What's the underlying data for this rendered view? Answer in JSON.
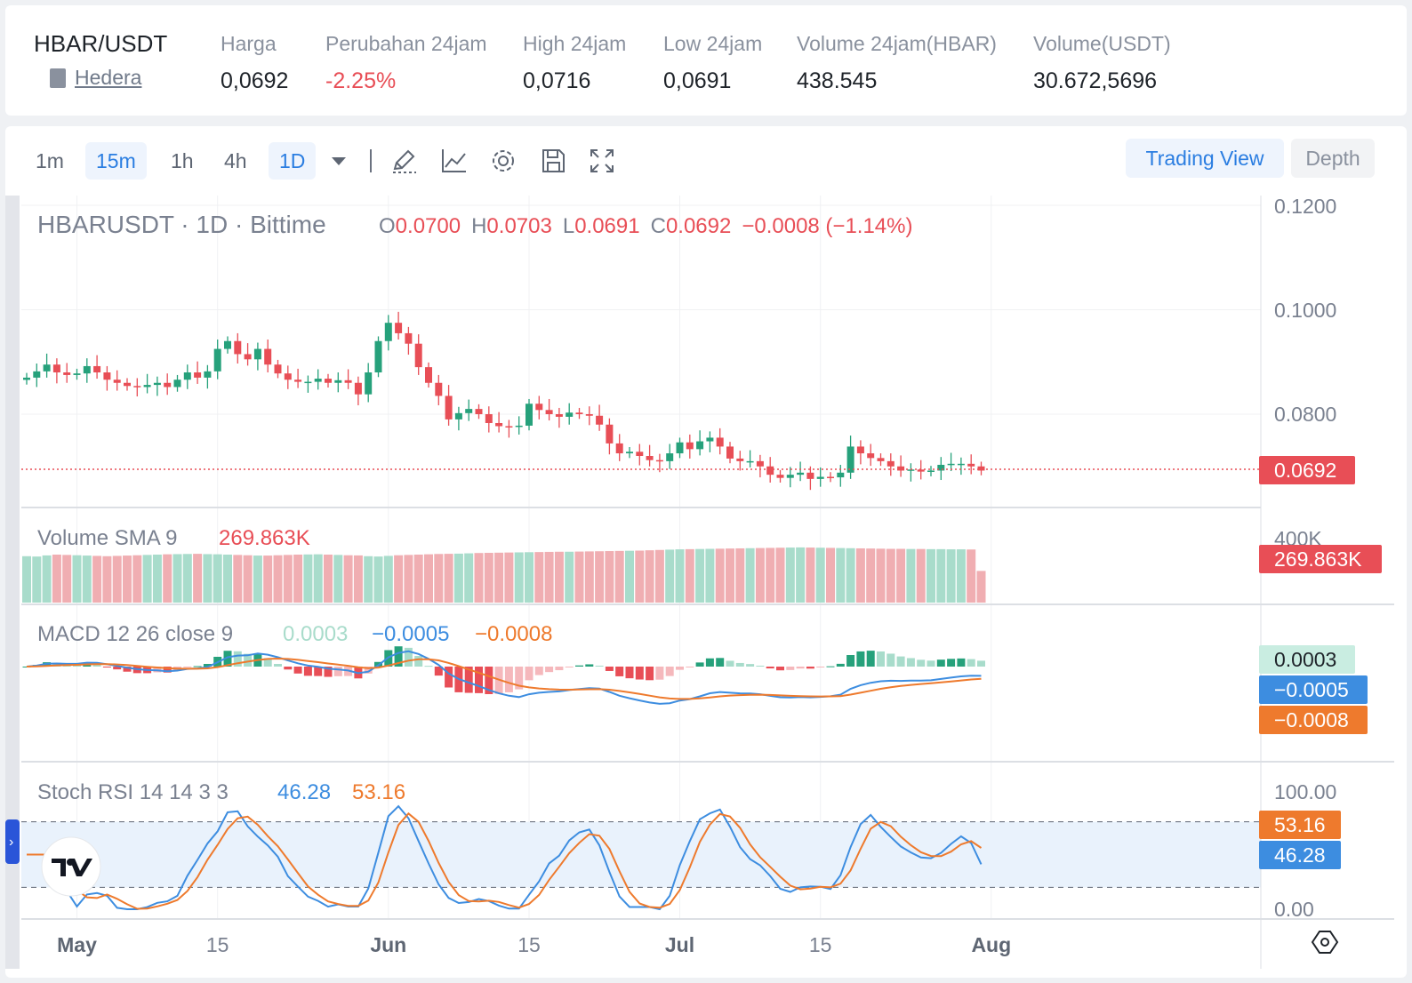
{
  "ticker": {
    "symbol": "HBAR/USDT",
    "coin_name": "Hedera",
    "stats": [
      {
        "label": "Harga",
        "value": "0,0692",
        "negative": false
      },
      {
        "label": "Perubahan 24jam",
        "value": "-2.25%",
        "negative": true
      },
      {
        "label": "High 24jam",
        "value": "0,0716",
        "negative": false
      },
      {
        "label": "Low 24jam",
        "value": "0,0691",
        "negative": false
      },
      {
        "label": "Volume 24jam(HBAR)",
        "value": "438.545",
        "negative": false
      },
      {
        "label": "Volume(USDT)",
        "value": "30.672,5696",
        "negative": false
      }
    ]
  },
  "toolbar": {
    "intervals": [
      "1m",
      "15m",
      "1h",
      "4h",
      "1D"
    ],
    "view_tabs": [
      "Trading View",
      "Depth"
    ]
  },
  "colors": {
    "up": "#26a17b",
    "down": "#e84e56",
    "accent": "#2a7de1",
    "macd_line": "#3d8de0",
    "signal_line": "#ee7a2d"
  },
  "chart_data": {
    "type": "candlestick",
    "title_parts": [
      "HBARUSDT",
      "·",
      "1D",
      "·",
      "Bittime"
    ],
    "ohlc_legend": {
      "O": "0.0700",
      "H": "0.0703",
      "L": "0.0691",
      "C": "0.0692",
      "change": "−0.0008 (−1.14%)"
    },
    "last_price": "0.0692",
    "y_ticks": [
      "0.1200",
      "0.1000",
      "0.0800"
    ],
    "ylim": [
      0.063,
      0.124
    ],
    "x_ticks": [
      "May",
      "15",
      "Jun",
      "15",
      "Jul",
      "15",
      "Aug"
    ],
    "x_tick_days": [
      5,
      19,
      36,
      50,
      65,
      79,
      96
    ],
    "start_date": "2024-04-26",
    "closes": [
      0.087,
      0.0882,
      0.0895,
      0.088,
      0.0875,
      0.0878,
      0.0892,
      0.088,
      0.0866,
      0.086,
      0.0854,
      0.0852,
      0.0856,
      0.086,
      0.0852,
      0.0866,
      0.088,
      0.087,
      0.0882,
      0.0925,
      0.094,
      0.0915,
      0.0905,
      0.0925,
      0.0895,
      0.0878,
      0.0866,
      0.0862,
      0.0862,
      0.0868,
      0.086,
      0.0865,
      0.086,
      0.0838,
      0.088,
      0.094,
      0.0975,
      0.0955,
      0.0935,
      0.089,
      0.086,
      0.0835,
      0.079,
      0.0802,
      0.081,
      0.08,
      0.0783,
      0.0777,
      0.0776,
      0.0778,
      0.082,
      0.0808,
      0.08,
      0.0795,
      0.0803,
      0.08,
      0.0797,
      0.078,
      0.0744,
      0.0725,
      0.0728,
      0.072,
      0.0712,
      0.071,
      0.0725,
      0.0746,
      0.0733,
      0.0748,
      0.0755,
      0.0738,
      0.0715,
      0.071,
      0.071,
      0.07,
      0.0684,
      0.0678,
      0.0684,
      0.0688,
      0.0676,
      0.068,
      0.0679,
      0.0688,
      0.0738,
      0.0725,
      0.0716,
      0.071,
      0.07,
      0.0692,
      0.0694,
      0.069,
      0.0692,
      0.0703,
      0.0705,
      0.0705,
      0.07,
      0.0692
    ],
    "volume": {
      "label": "Volume SMA 9",
      "value": "269.863K",
      "y_tick": "400K",
      "values": [
        290,
        288,
        295,
        300,
        298,
        296,
        294,
        292,
        290,
        292,
        294,
        296,
        298,
        300,
        302,
        303,
        304,
        305,
        303,
        302,
        300,
        298,
        296,
        294,
        294,
        296,
        298,
        300,
        301,
        302,
        300,
        298,
        296,
        295,
        290,
        288,
        292,
        296,
        298,
        300,
        302,
        304,
        305,
        306,
        308,
        310,
        311,
        312,
        313,
        314,
        315,
        316,
        317,
        318,
        318,
        319,
        320,
        321,
        322,
        323,
        324,
        325,
        327,
        329,
        331,
        333,
        334,
        335,
        336,
        337,
        338,
        339,
        340,
        341,
        342,
        343,
        344,
        345,
        344,
        343,
        342,
        341,
        340,
        339,
        338,
        337,
        336,
        336,
        335,
        335,
        334,
        334,
        333,
        333,
        332,
        198
      ]
    },
    "macd": {
      "label": "MACD 12 26 close 9",
      "hist_value": "0.0003",
      "macd_value": "−0.0005",
      "signal_value": "−0.0008"
    },
    "stoch_rsi": {
      "label": "Stoch RSI 14 14 3 3",
      "k_value": "46.28",
      "d_value": "53.16",
      "y_ticks": [
        "100.00",
        "0.00"
      ],
      "bands": [
        80,
        20
      ]
    }
  }
}
